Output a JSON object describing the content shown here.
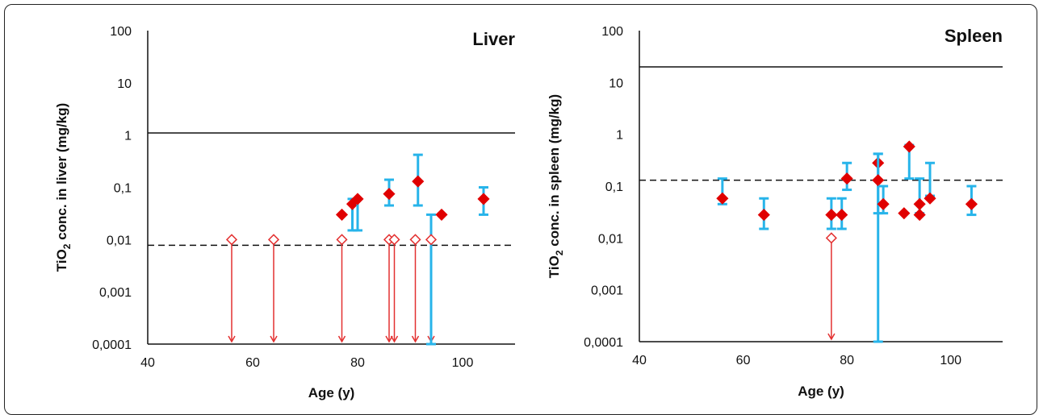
{
  "chart_data": [
    {
      "type": "scatter",
      "title": "Liver",
      "xlabel": "Age (y)",
      "ylabel_main": "TiO",
      "ylabel_sub": "2",
      "ylabel_rest": " conc. in liver (mg/kg)",
      "x_ticks": [
        "40",
        "60",
        "80",
        "100"
      ],
      "y_ticks": [
        "0,0001",
        "0,001",
        "0,01",
        "0,1",
        "1",
        "10",
        "100"
      ],
      "xlim": [
        40,
        110
      ],
      "ylim": [
        0.0001,
        100
      ],
      "y_scale": "log",
      "solid_line_y": 1.1,
      "dashed_line_y": 0.0078,
      "colors": {
        "point": "#e00000",
        "errorbar": "#27b4ea",
        "arrow": "#e33030"
      },
      "points": [
        {
          "x": 77,
          "y": 0.03
        },
        {
          "x": 79,
          "y": 0.048,
          "err_low": 0.015,
          "err_high": 0.06
        },
        {
          "x": 80,
          "y": 0.06,
          "err_low": 0.015,
          "err_high": 0.06
        },
        {
          "x": 86,
          "y": 0.075,
          "err_low": 0.045,
          "err_high": 0.14
        },
        {
          "x": 91.5,
          "y": 0.13,
          "err_low": 0.045,
          "err_high": 0.42
        },
        {
          "x": 96,
          "y": 0.03
        },
        {
          "x": 104,
          "y": 0.06,
          "err_low": 0.03,
          "err_high": 0.1
        }
      ],
      "open_points": [
        {
          "x": 56,
          "y": 0.01
        },
        {
          "x": 64,
          "y": 0.01
        },
        {
          "x": 77,
          "y": 0.01
        },
        {
          "x": 86,
          "y": 0.01
        },
        {
          "x": 87,
          "y": 0.01
        },
        {
          "x": 91,
          "y": 0.01
        },
        {
          "x": 94,
          "y": 0.01,
          "err_low": 0.0001,
          "err_high": 0.03
        }
      ]
    },
    {
      "type": "scatter",
      "title": "Spleen",
      "xlabel": "Age (y)",
      "ylabel_main": "TiO",
      "ylabel_sub": "2",
      "ylabel_rest": " conc. in spleen (mg/kg)",
      "x_ticks": [
        "40",
        "60",
        "80",
        "100"
      ],
      "y_ticks": [
        "0,0001",
        "0,001",
        "0,01",
        "0,1",
        "1",
        "10",
        "100"
      ],
      "xlim": [
        40,
        110
      ],
      "ylim": [
        0.0001,
        100
      ],
      "y_scale": "log",
      "solid_line_y": 20,
      "dashed_line_y": 0.13,
      "colors": {
        "point": "#e00000",
        "errorbar": "#27b4ea",
        "arrow": "#e33030"
      },
      "points": [
        {
          "x": 56,
          "y": 0.058,
          "err_low": 0.045,
          "err_high": 0.14
        },
        {
          "x": 64,
          "y": 0.028,
          "err_low": 0.015,
          "err_high": 0.058
        },
        {
          "x": 77,
          "y": 0.028,
          "err_low": 0.015,
          "err_high": 0.058
        },
        {
          "x": 79,
          "y": 0.028,
          "err_low": 0.015,
          "err_high": 0.058
        },
        {
          "x": 80,
          "y": 0.14,
          "err_low": 0.085,
          "err_high": 0.28
        },
        {
          "x": 86,
          "y": 0.28,
          "err_low": 0.03,
          "err_high": 0.42
        },
        {
          "x": 86,
          "y": 0.13,
          "err_low": 0.0001,
          "err_high": 0.42
        },
        {
          "x": 87,
          "y": 0.045,
          "err_low": 0.03,
          "err_high": 0.1
        },
        {
          "x": 91,
          "y": 0.03
        },
        {
          "x": 92,
          "y": 0.58,
          "err_low": 0.14,
          "err_high": 0.62
        },
        {
          "x": 94,
          "y": 0.045,
          "err_low": 0.03,
          "err_high": 0.14
        },
        {
          "x": 94,
          "y": 0.028
        },
        {
          "x": 96,
          "y": 0.058,
          "err_low": 0.065,
          "err_high": 0.28
        },
        {
          "x": 104,
          "y": 0.045,
          "err_low": 0.028,
          "err_high": 0.1
        }
      ],
      "open_points": [
        {
          "x": 77,
          "y": 0.01
        }
      ]
    }
  ]
}
